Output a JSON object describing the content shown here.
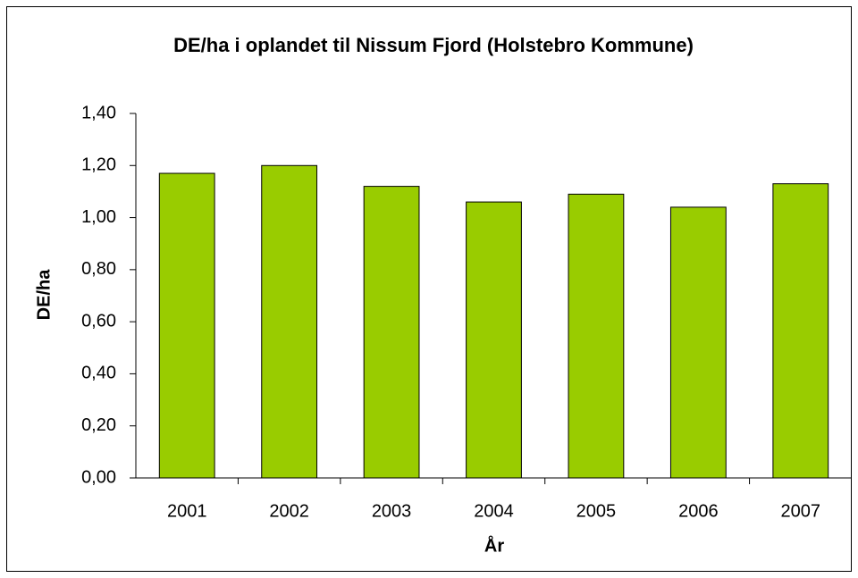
{
  "chart_data": {
    "type": "bar",
    "title": "DE/ha i oplandet til Nissum Fjord (Holstebro Kommune)",
    "x_label": "År",
    "y_label": "DE/ha",
    "categories": [
      "2001",
      "2002",
      "2003",
      "2004",
      "2005",
      "2006",
      "2007"
    ],
    "values": [
      1.17,
      1.2,
      1.12,
      1.06,
      1.09,
      1.04,
      1.13
    ],
    "color": "#99cc00",
    "ylim": [
      0,
      1.4
    ],
    "yticks": [
      {
        "value": 0,
        "label": "0,00"
      },
      {
        "value": 0.2,
        "label": "0,20"
      },
      {
        "value": 0.4,
        "label": "0,40"
      },
      {
        "value": 0.6,
        "label": "0,60"
      },
      {
        "value": 0.8,
        "label": "0,80"
      },
      {
        "value": 1.0,
        "label": "1,00"
      },
      {
        "value": 1.2,
        "label": "1,20"
      },
      {
        "value": 1.4,
        "label": "1,40"
      }
    ],
    "grid": false
  }
}
